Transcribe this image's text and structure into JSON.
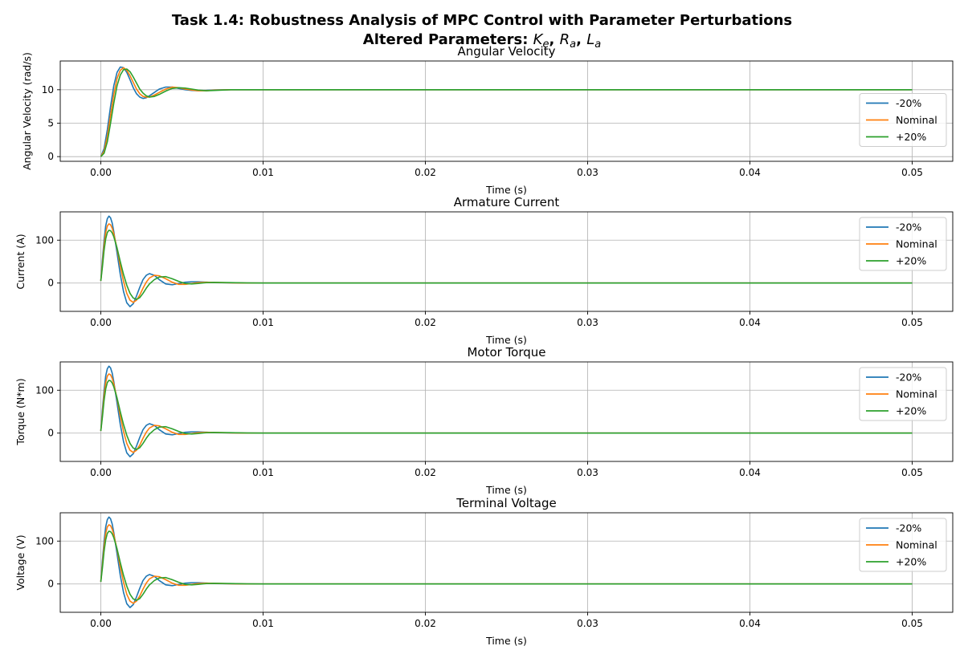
{
  "figure": {
    "title_line1": "Task 1.4: Robustness Analysis of MPC Control with Parameter Perturbations",
    "title_line2_prefix": "Altered Parameters: ",
    "title_params": [
      {
        "base": "K",
        "sub": "e"
      },
      {
        "base": "R",
        "sub": "a"
      },
      {
        "base": "L",
        "sub": "a"
      }
    ],
    "title_separator": ", "
  },
  "colors": {
    "-20%": "#1f77b4",
    "Nominal": "#ff7f0e",
    "+20%": "#2ca02c",
    "grid": "#b0b0b0",
    "axes": "#000000"
  },
  "chart_data": [
    {
      "type": "line",
      "title": "Angular Velocity",
      "xlabel": "Time (s)",
      "ylabel": "Angular Velocity (rad/s)",
      "xlim": [
        -0.0025,
        0.0525
      ],
      "ylim": [
        -0.7,
        14.3
      ],
      "xticks": [
        0.0,
        0.01,
        0.02,
        0.03,
        0.04,
        0.05
      ],
      "xtick_labels": [
        "0.00",
        "0.01",
        "0.02",
        "0.03",
        "0.04",
        "0.05"
      ],
      "yticks": [
        0,
        5,
        10
      ],
      "ytick_labels": [
        "0",
        "5",
        "10"
      ],
      "grid": true,
      "legend_position": "center-right",
      "series": [
        {
          "name": "-20%",
          "x": [
            0,
            0.0002,
            0.0004,
            0.0006,
            0.0008,
            0.001,
            0.0012,
            0.0014,
            0.0016,
            0.0018,
            0.002,
            0.0022,
            0.0024,
            0.0026,
            0.0028,
            0.003,
            0.0033,
            0.0036,
            0.004,
            0.0044,
            0.0048,
            0.0052,
            0.0056,
            0.006,
            0.0065,
            0.007,
            0.008,
            0.009,
            0.01,
            0.02,
            0.03,
            0.04,
            0.05
          ],
          "y": [
            0,
            1.2,
            4.0,
            7.5,
            10.6,
            12.6,
            13.4,
            13.3,
            12.6,
            11.5,
            10.3,
            9.4,
            8.9,
            8.7,
            8.8,
            9.1,
            9.6,
            10.1,
            10.4,
            10.4,
            10.2,
            10.0,
            9.9,
            9.85,
            9.9,
            9.98,
            10.0,
            10.0,
            10.0,
            10.0,
            10.0,
            10.0,
            10.0
          ]
        },
        {
          "name": "Nominal",
          "x": [
            0,
            0.0002,
            0.0004,
            0.0006,
            0.0008,
            0.001,
            0.0012,
            0.0014,
            0.0016,
            0.0018,
            0.002,
            0.0022,
            0.0024,
            0.0026,
            0.0028,
            0.003,
            0.0033,
            0.0036,
            0.004,
            0.0044,
            0.0048,
            0.0052,
            0.0056,
            0.006,
            0.0065,
            0.007,
            0.008,
            0.009,
            0.01,
            0.02,
            0.03,
            0.04,
            0.05
          ],
          "y": [
            0,
            0.8,
            3.0,
            6.2,
            9.3,
            11.7,
            12.9,
            13.3,
            12.9,
            12.1,
            11.1,
            10.1,
            9.4,
            9.0,
            8.9,
            8.9,
            9.2,
            9.6,
            10.1,
            10.4,
            10.3,
            10.1,
            9.95,
            9.85,
            9.85,
            9.95,
            10.0,
            10.0,
            10.0,
            10.0,
            10.0,
            10.0,
            10.0
          ]
        },
        {
          "name": "+20%",
          "x": [
            0,
            0.0002,
            0.0004,
            0.0006,
            0.0008,
            0.001,
            0.0012,
            0.0014,
            0.0016,
            0.0018,
            0.002,
            0.0022,
            0.0024,
            0.0026,
            0.0028,
            0.003,
            0.0033,
            0.0036,
            0.004,
            0.0044,
            0.0048,
            0.0052,
            0.0056,
            0.006,
            0.0065,
            0.007,
            0.008,
            0.009,
            0.01,
            0.02,
            0.03,
            0.04,
            0.05
          ],
          "y": [
            0,
            0.5,
            2.2,
            5.0,
            8.0,
            10.6,
            12.2,
            13.0,
            13.1,
            12.7,
            11.9,
            11.0,
            10.1,
            9.5,
            9.1,
            8.9,
            9.0,
            9.3,
            9.8,
            10.2,
            10.3,
            10.25,
            10.1,
            9.95,
            9.85,
            9.9,
            10.0,
            10.0,
            10.0,
            10.0,
            10.0,
            10.0,
            10.0
          ]
        }
      ]
    },
    {
      "type": "line",
      "title": "Armature Current",
      "xlabel": "Time (s)",
      "ylabel": "Current (A)",
      "xlim": [
        -0.0025,
        0.0525
      ],
      "ylim": [
        -66,
        166
      ],
      "xticks": [
        0.0,
        0.01,
        0.02,
        0.03,
        0.04,
        0.05
      ],
      "xtick_labels": [
        "0.00",
        "0.01",
        "0.02",
        "0.03",
        "0.04",
        "0.05"
      ],
      "yticks": [
        0,
        100
      ],
      "ytick_labels": [
        "0",
        "100"
      ],
      "grid": true,
      "legend_position": "top-right",
      "series": [
        {
          "name": "-20%",
          "x": [
            0,
            0.0001,
            0.0002,
            0.0003,
            0.0004,
            0.0005,
            0.0006,
            0.0007,
            0.0008,
            0.001,
            0.0012,
            0.0014,
            0.0016,
            0.0018,
            0.002,
            0.0022,
            0.0024,
            0.0026,
            0.0028,
            0.003,
            0.0033,
            0.0036,
            0.004,
            0.0044,
            0.0048,
            0.0052,
            0.0056,
            0.006,
            0.0065,
            0.007,
            0.008,
            0.009,
            0.01,
            0.02,
            0.03,
            0.04,
            0.05
          ],
          "y": [
            5,
            55,
            100,
            133,
            150,
            156,
            152,
            140,
            120,
            70,
            20,
            -20,
            -46,
            -55,
            -48,
            -30,
            -10,
            8,
            18,
            22,
            18,
            8,
            -2,
            -4,
            -1,
            2,
            3,
            3,
            2,
            1,
            0.5,
            0,
            0,
            0,
            0,
            0,
            0
          ]
        },
        {
          "name": "Nominal",
          "x": [
            0,
            0.0001,
            0.0002,
            0.0003,
            0.0004,
            0.0005,
            0.0006,
            0.0007,
            0.0008,
            0.001,
            0.0012,
            0.0014,
            0.0016,
            0.0018,
            0.002,
            0.0022,
            0.0024,
            0.0026,
            0.0028,
            0.003,
            0.0033,
            0.0036,
            0.004,
            0.0044,
            0.0048,
            0.0052,
            0.0056,
            0.006,
            0.0065,
            0.007,
            0.008,
            0.009,
            0.01,
            0.02,
            0.03,
            0.04,
            0.05
          ],
          "y": [
            5,
            45,
            88,
            118,
            133,
            138,
            136,
            128,
            115,
            80,
            40,
            4,
            -24,
            -40,
            -45,
            -40,
            -28,
            -12,
            2,
            12,
            18,
            17,
            10,
            2,
            -3,
            -3,
            -1,
            1,
            2,
            1.5,
            0.5,
            0,
            0,
            0,
            0,
            0,
            0
          ]
        },
        {
          "name": "+20%",
          "x": [
            0,
            0.0001,
            0.0002,
            0.0003,
            0.0004,
            0.0005,
            0.0006,
            0.0007,
            0.0008,
            0.001,
            0.0012,
            0.0014,
            0.0016,
            0.0018,
            0.002,
            0.0022,
            0.0024,
            0.0026,
            0.0028,
            0.003,
            0.0033,
            0.0036,
            0.004,
            0.0044,
            0.0048,
            0.0052,
            0.0056,
            0.006,
            0.0065,
            0.007,
            0.008,
            0.009,
            0.01,
            0.02,
            0.03,
            0.04,
            0.05
          ],
          "y": [
            5,
            38,
            76,
            103,
            118,
            123,
            122,
            117,
            108,
            82,
            50,
            20,
            -5,
            -24,
            -35,
            -38,
            -34,
            -24,
            -12,
            -2,
            8,
            14,
            15,
            10,
            4,
            -1,
            -2,
            -1,
            1,
            1.5,
            1,
            0.3,
            0,
            0,
            0,
            0,
            0
          ]
        }
      ]
    },
    {
      "type": "line",
      "title": "Motor Torque",
      "xlabel": "Time (s)",
      "ylabel": "Torque (N*m)",
      "xlim": [
        -0.0025,
        0.0525
      ],
      "ylim": [
        -66,
        166
      ],
      "xticks": [
        0.0,
        0.01,
        0.02,
        0.03,
        0.04,
        0.05
      ],
      "xtick_labels": [
        "0.00",
        "0.01",
        "0.02",
        "0.03",
        "0.04",
        "0.05"
      ],
      "yticks": [
        0,
        100
      ],
      "ytick_labels": [
        "0",
        "100"
      ],
      "grid": true,
      "legend_position": "top-right",
      "series": [
        {
          "name": "-20%",
          "x": [
            0,
            0.0001,
            0.0002,
            0.0003,
            0.0004,
            0.0005,
            0.0006,
            0.0007,
            0.0008,
            0.001,
            0.0012,
            0.0014,
            0.0016,
            0.0018,
            0.002,
            0.0022,
            0.0024,
            0.0026,
            0.0028,
            0.003,
            0.0033,
            0.0036,
            0.004,
            0.0044,
            0.0048,
            0.0052,
            0.0056,
            0.006,
            0.0065,
            0.007,
            0.008,
            0.009,
            0.01,
            0.02,
            0.03,
            0.04,
            0.05
          ],
          "y": [
            5,
            55,
            100,
            133,
            150,
            156,
            152,
            140,
            120,
            70,
            20,
            -20,
            -46,
            -55,
            -48,
            -30,
            -10,
            8,
            18,
            22,
            18,
            8,
            -2,
            -4,
            -1,
            2,
            3,
            3,
            2,
            1,
            0.5,
            0,
            0,
            0,
            0,
            0,
            0
          ]
        },
        {
          "name": "Nominal",
          "x": [
            0,
            0.0001,
            0.0002,
            0.0003,
            0.0004,
            0.0005,
            0.0006,
            0.0007,
            0.0008,
            0.001,
            0.0012,
            0.0014,
            0.0016,
            0.0018,
            0.002,
            0.0022,
            0.0024,
            0.0026,
            0.0028,
            0.003,
            0.0033,
            0.0036,
            0.004,
            0.0044,
            0.0048,
            0.0052,
            0.0056,
            0.006,
            0.0065,
            0.007,
            0.008,
            0.009,
            0.01,
            0.02,
            0.03,
            0.04,
            0.05
          ],
          "y": [
            5,
            45,
            88,
            118,
            133,
            138,
            136,
            128,
            115,
            80,
            40,
            4,
            -24,
            -40,
            -45,
            -40,
            -28,
            -12,
            2,
            12,
            18,
            17,
            10,
            2,
            -3,
            -3,
            -1,
            1,
            2,
            1.5,
            0.5,
            0,
            0,
            0,
            0,
            0,
            0
          ]
        },
        {
          "name": "+20%",
          "x": [
            0,
            0.0001,
            0.0002,
            0.0003,
            0.0004,
            0.0005,
            0.0006,
            0.0007,
            0.0008,
            0.001,
            0.0012,
            0.0014,
            0.0016,
            0.0018,
            0.002,
            0.0022,
            0.0024,
            0.0026,
            0.0028,
            0.003,
            0.0033,
            0.0036,
            0.004,
            0.0044,
            0.0048,
            0.0052,
            0.0056,
            0.006,
            0.0065,
            0.007,
            0.008,
            0.009,
            0.01,
            0.02,
            0.03,
            0.04,
            0.05
          ],
          "y": [
            5,
            38,
            76,
            103,
            118,
            123,
            122,
            117,
            108,
            82,
            50,
            20,
            -5,
            -24,
            -35,
            -38,
            -34,
            -24,
            -12,
            -2,
            8,
            14,
            15,
            10,
            4,
            -1,
            -2,
            -1,
            1,
            1.5,
            1,
            0.3,
            0,
            0,
            0,
            0,
            0
          ]
        }
      ]
    },
    {
      "type": "line",
      "title": "Terminal Voltage",
      "xlabel": "Time (s)",
      "ylabel": "Voltage (V)",
      "xlim": [
        -0.0025,
        0.0525
      ],
      "ylim": [
        -66,
        166
      ],
      "xticks": [
        0.0,
        0.01,
        0.02,
        0.03,
        0.04,
        0.05
      ],
      "xtick_labels": [
        "0.00",
        "0.01",
        "0.02",
        "0.03",
        "0.04",
        "0.05"
      ],
      "yticks": [
        0,
        100
      ],
      "ytick_labels": [
        "0",
        "100"
      ],
      "grid": true,
      "legend_position": "top-right",
      "series": [
        {
          "name": "-20%",
          "x": [
            0,
            0.0001,
            0.0002,
            0.0003,
            0.0004,
            0.0005,
            0.0006,
            0.0007,
            0.0008,
            0.001,
            0.0012,
            0.0014,
            0.0016,
            0.0018,
            0.002,
            0.0022,
            0.0024,
            0.0026,
            0.0028,
            0.003,
            0.0033,
            0.0036,
            0.004,
            0.0044,
            0.0048,
            0.0052,
            0.0056,
            0.006,
            0.0065,
            0.007,
            0.008,
            0.009,
            0.01,
            0.02,
            0.03,
            0.04,
            0.05
          ],
          "y": [
            5,
            55,
            100,
            133,
            150,
            156,
            152,
            140,
            120,
            70,
            20,
            -20,
            -46,
            -55,
            -48,
            -30,
            -10,
            8,
            18,
            22,
            18,
            8,
            -2,
            -4,
            -1,
            2,
            3,
            3,
            2,
            1,
            0.5,
            0,
            0,
            0,
            0,
            0,
            0
          ]
        },
        {
          "name": "Nominal",
          "x": [
            0,
            0.0001,
            0.0002,
            0.0003,
            0.0004,
            0.0005,
            0.0006,
            0.0007,
            0.0008,
            0.001,
            0.0012,
            0.0014,
            0.0016,
            0.0018,
            0.002,
            0.0022,
            0.0024,
            0.0026,
            0.0028,
            0.003,
            0.0033,
            0.0036,
            0.004,
            0.0044,
            0.0048,
            0.0052,
            0.0056,
            0.006,
            0.0065,
            0.007,
            0.008,
            0.009,
            0.01,
            0.02,
            0.03,
            0.04,
            0.05
          ],
          "y": [
            5,
            45,
            88,
            118,
            133,
            138,
            136,
            128,
            115,
            80,
            40,
            4,
            -24,
            -40,
            -45,
            -40,
            -28,
            -12,
            2,
            12,
            18,
            17,
            10,
            2,
            -3,
            -3,
            -1,
            1,
            2,
            1.5,
            0.5,
            0,
            0,
            0,
            0,
            0,
            0
          ]
        },
        {
          "name": "+20%",
          "x": [
            0,
            0.0001,
            0.0002,
            0.0003,
            0.0004,
            0.0005,
            0.0006,
            0.0007,
            0.0008,
            0.001,
            0.0012,
            0.0014,
            0.0016,
            0.0018,
            0.002,
            0.0022,
            0.0024,
            0.0026,
            0.0028,
            0.003,
            0.0033,
            0.0036,
            0.004,
            0.0044,
            0.0048,
            0.0052,
            0.0056,
            0.006,
            0.0065,
            0.007,
            0.008,
            0.009,
            0.01,
            0.02,
            0.03,
            0.04,
            0.05
          ],
          "y": [
            5,
            38,
            76,
            103,
            118,
            123,
            122,
            117,
            108,
            82,
            50,
            20,
            -5,
            -24,
            -35,
            -38,
            -34,
            -24,
            -12,
            -2,
            8,
            14,
            15,
            10,
            4,
            -1,
            -2,
            -1,
            1,
            1.5,
            1,
            0.3,
            0,
            0,
            0,
            0,
            0
          ]
        }
      ]
    }
  ]
}
